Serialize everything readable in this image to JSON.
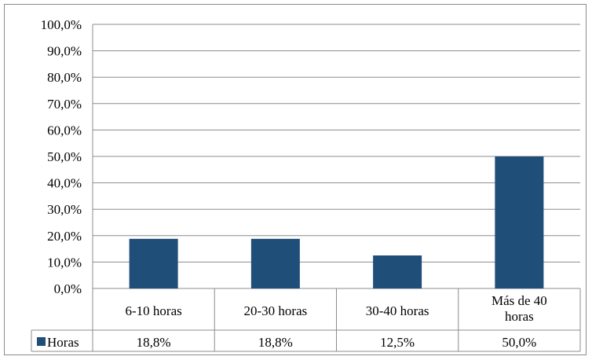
{
  "chart_data": {
    "type": "bar",
    "categories": [
      [
        "6-10 horas"
      ],
      [
        "20-30 horas"
      ],
      [
        "30-40 horas"
      ],
      [
        "Más de 40",
        "horas"
      ]
    ],
    "series": [
      {
        "name": "Horas",
        "values": [
          18.8,
          18.8,
          12.5,
          50.0
        ],
        "value_labels": [
          "18,8%",
          "18,8%",
          "12,5%",
          "50,0%"
        ],
        "color": "#1f4e79"
      }
    ],
    "ylim": [
      0,
      100
    ],
    "yticks": [
      "0,0%",
      "10,0%",
      "20,0%",
      "30,0%",
      "40,0%",
      "50,0%",
      "60,0%",
      "70,0%",
      "80,0%",
      "90,0%",
      "100,0%"
    ],
    "grid": true,
    "legend_placement": "data-table",
    "title": "",
    "xlabel": "",
    "ylabel": ""
  }
}
